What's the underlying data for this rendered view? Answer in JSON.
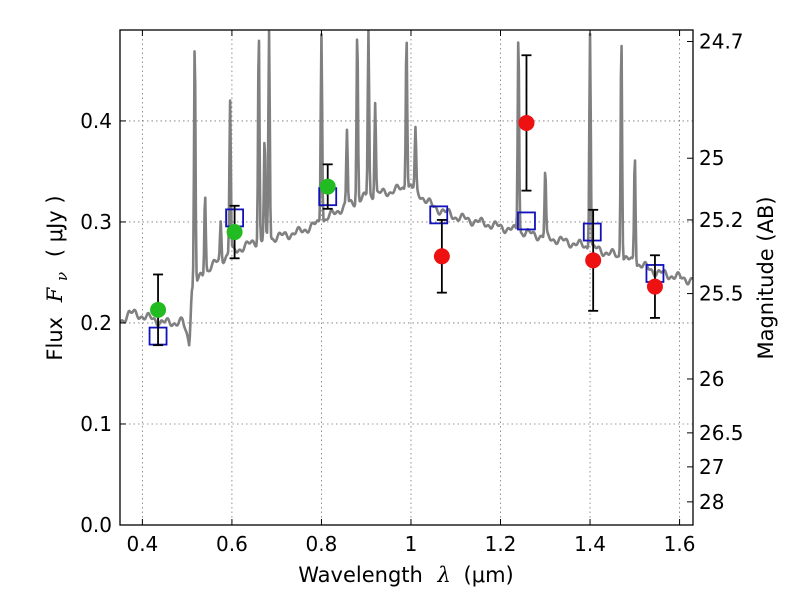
{
  "chart_data": {
    "type": "scatter",
    "title": "",
    "xlabel_text": "Wavelength",
    "xlabel_symbol": "λ",
    "xlabel_unit": "(μm)",
    "ylabel_text": "Flux",
    "ylabel_symbol": "F",
    "ylabel_subscript": "ν",
    "ylabel_unit": "( μJy )",
    "y2label": "Magnitude (AB)",
    "xlim": [
      0.35,
      1.63
    ],
    "ylim": [
      0.0,
      0.49
    ],
    "grid": true,
    "x_ticks": [
      {
        "value": 0.4,
        "label": "0.4"
      },
      {
        "value": 0.6,
        "label": "0.6"
      },
      {
        "value": 0.8,
        "label": "0.8"
      },
      {
        "value": 1.0,
        "label": "1"
      },
      {
        "value": 1.2,
        "label": "1.2"
      },
      {
        "value": 1.4,
        "label": "1.4"
      },
      {
        "value": 1.6,
        "label": "1.6"
      }
    ],
    "y_ticks": [
      {
        "value": 0.0,
        "label": "0.0"
      },
      {
        "value": 0.1,
        "label": "0.1"
      },
      {
        "value": 0.2,
        "label": "0.2"
      },
      {
        "value": 0.3,
        "label": "0.3"
      },
      {
        "value": 0.4,
        "label": "0.4"
      }
    ],
    "y2_ticks": [
      {
        "value": 24.7,
        "label": "24.7"
      },
      {
        "value": 25.0,
        "label": "25"
      },
      {
        "value": 25.2,
        "label": "25.2"
      },
      {
        "value": 25.5,
        "label": "25.5"
      },
      {
        "value": 26.0,
        "label": "26"
      },
      {
        "value": 26.5,
        "label": "26.5"
      },
      {
        "value": 27.0,
        "label": "27"
      },
      {
        "value": 28.0,
        "label": "28"
      }
    ],
    "colors": {
      "spectrum": "#808080",
      "green": "#22bb22",
      "red": "#ee1111",
      "model": "#1111bb",
      "errorbar": "#000000",
      "grid": "#777777"
    },
    "spectrum_continuum": [
      [
        0.35,
        0.2
      ],
      [
        0.37,
        0.21
      ],
      [
        0.4,
        0.207
      ],
      [
        0.45,
        0.2
      ],
      [
        0.49,
        0.201
      ],
      [
        0.505,
        0.18
      ],
      [
        0.51,
        0.235
      ],
      [
        0.55,
        0.255
      ],
      [
        0.6,
        0.27
      ],
      [
        0.65,
        0.28
      ],
      [
        0.7,
        0.285
      ],
      [
        0.75,
        0.29
      ],
      [
        0.8,
        0.3
      ],
      [
        0.85,
        0.315
      ],
      [
        0.9,
        0.325
      ],
      [
        0.95,
        0.33
      ],
      [
        1.0,
        0.335
      ],
      [
        1.05,
        0.315
      ],
      [
        1.1,
        0.305
      ],
      [
        1.15,
        0.3
      ],
      [
        1.2,
        0.295
      ],
      [
        1.25,
        0.29
      ],
      [
        1.3,
        0.285
      ],
      [
        1.35,
        0.28
      ],
      [
        1.4,
        0.275
      ],
      [
        1.45,
        0.268
      ],
      [
        1.5,
        0.26
      ],
      [
        1.55,
        0.25
      ],
      [
        1.6,
        0.245
      ],
      [
        1.63,
        0.242
      ]
    ],
    "spectrum_lines": [
      {
        "x": 0.517,
        "peak": 0.48
      },
      {
        "x": 0.54,
        "peak": 0.33
      },
      {
        "x": 0.575,
        "peak": 0.3
      },
      {
        "x": 0.596,
        "peak": 0.42
      },
      {
        "x": 0.66,
        "peak": 0.49
      },
      {
        "x": 0.673,
        "peak": 0.38
      },
      {
        "x": 0.683,
        "peak": 0.49
      },
      {
        "x": 0.8,
        "peak": 0.49
      },
      {
        "x": 0.857,
        "peak": 0.39
      },
      {
        "x": 0.88,
        "peak": 0.49
      },
      {
        "x": 0.905,
        "peak": 0.49
      },
      {
        "x": 0.92,
        "peak": 0.42
      },
      {
        "x": 0.955,
        "peak": 0.33
      },
      {
        "x": 0.99,
        "peak": 0.49
      },
      {
        "x": 1.01,
        "peak": 0.39
      },
      {
        "x": 1.24,
        "peak": 0.49
      },
      {
        "x": 1.3,
        "peak": 0.35
      },
      {
        "x": 1.4,
        "peak": 0.49
      },
      {
        "x": 1.47,
        "peak": 0.49
      },
      {
        "x": 1.5,
        "peak": 0.37
      }
    ],
    "green_points": [
      {
        "x": 0.435,
        "y": 0.213,
        "yerr_low": 0.035,
        "yerr_high": 0.035
      },
      {
        "x": 0.606,
        "y": 0.29,
        "yerr_low": 0.026,
        "yerr_high": 0.026
      },
      {
        "x": 0.814,
        "y": 0.335,
        "yerr_low": 0.022,
        "yerr_high": 0.022
      }
    ],
    "red_points": [
      {
        "x": 1.069,
        "y": 0.266,
        "yerr_low": 0.036,
        "yerr_high": 0.036
      },
      {
        "x": 1.258,
        "y": 0.398,
        "yerr_low": 0.067,
        "yerr_high": 0.067
      },
      {
        "x": 1.407,
        "y": 0.262,
        "yerr_low": 0.05,
        "yerr_high": 0.05
      },
      {
        "x": 1.545,
        "y": 0.236,
        "yerr_low": 0.031,
        "yerr_high": 0.031
      }
    ],
    "model_points": [
      {
        "x": 0.435,
        "y": 0.187
      },
      {
        "x": 0.606,
        "y": 0.304
      },
      {
        "x": 0.814,
        "y": 0.325
      },
      {
        "x": 1.062,
        "y": 0.307
      },
      {
        "x": 1.258,
        "y": 0.301
      },
      {
        "x": 1.405,
        "y": 0.29
      },
      {
        "x": 1.545,
        "y": 0.249
      }
    ]
  }
}
